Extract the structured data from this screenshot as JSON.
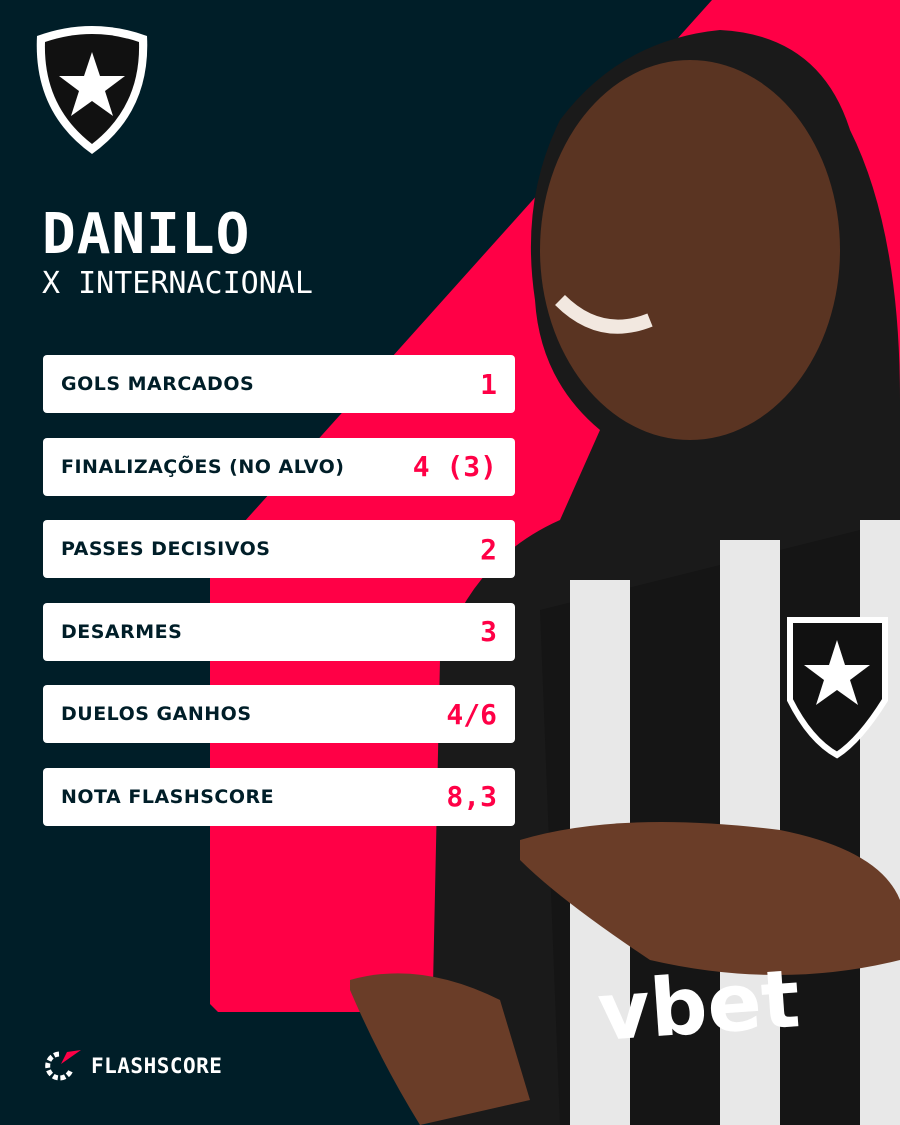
{
  "colors": {
    "background": "#001e28",
    "accent": "#ff0046",
    "card": "#ffffff"
  },
  "header": {
    "crest_icon": "botafogo-crest-icon",
    "player_name": "DANILO",
    "opponent": "X INTERNACIONAL"
  },
  "stats": [
    {
      "label": "GOLS MARCADOS",
      "value": "1"
    },
    {
      "label": "FINALIZAÇÕES (NO ALVO)",
      "value": "4 (3)"
    },
    {
      "label": "PASSES DECISIVOS",
      "value": "2"
    },
    {
      "label": "DESARMES",
      "value": "3"
    },
    {
      "label": "DUELOS GANHOS",
      "value": "4/6"
    },
    {
      "label": "NOTA FLASHSCORE",
      "value": "8,3"
    }
  ],
  "footer": {
    "brand_icon": "flashscore-logo-icon",
    "brand": "FLASHSCORE"
  },
  "photo": {
    "description_icon": "player-photo"
  }
}
